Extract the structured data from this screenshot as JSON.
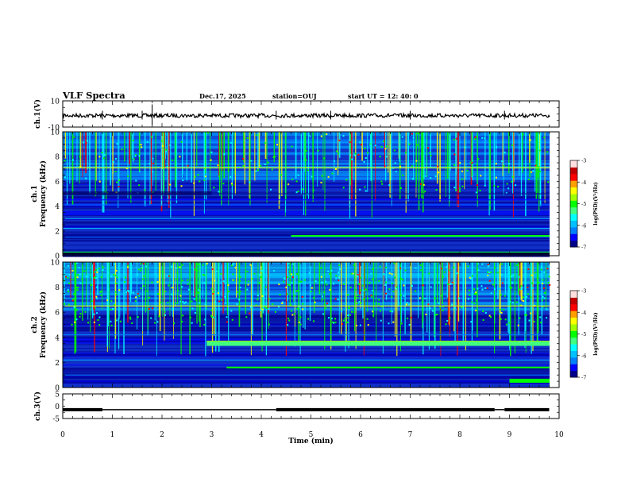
{
  "header": {
    "title": "VLF Spectra",
    "date": "Dec.17, 2025",
    "station": "station=OUJ",
    "start": "start  UT =   12: 40: 0"
  },
  "colors": {
    "colormap": [
      "#00008b",
      "#0000ff",
      "#0080ff",
      "#00c0ff",
      "#00ffff",
      "#40ff80",
      "#00ff00",
      "#a0ff00",
      "#ffff00",
      "#ffa000",
      "#ff0000",
      "#c00000",
      "#ffe0e0"
    ],
    "axis": "#000000"
  },
  "chart_data": [
    {
      "type": "line",
      "name": "ch1-waveform",
      "ylabel": "ch.1(V)",
      "ylim": [
        -10,
        10
      ],
      "yticks": [
        "10",
        "-10"
      ],
      "xlim": [
        0,
        10
      ],
      "description_values": {
        "baseline_v": 0,
        "spikes_min": [
          0.8,
          1.6,
          1.8,
          4.3,
          5.4,
          7.0,
          8.9
        ]
      }
    },
    {
      "type": "heatmap",
      "name": "ch1-spectrogram",
      "ylabel": "ch.1\nFrequency (kHz)",
      "ylim": [
        0,
        10
      ],
      "yticks": [
        "0",
        "2",
        "4",
        "6",
        "8",
        "10"
      ],
      "xlim": [
        0,
        10
      ],
      "colorbar": {
        "label": "log(PSD)(V²/Hz)",
        "ticks": [
          "-3",
          "-4",
          "-5",
          "-6",
          "-7"
        ],
        "range": [
          -7,
          -3
        ]
      },
      "features": {
        "tones_khz": [
          0.3,
          1.5,
          2.2,
          3.0,
          4.1,
          4.5,
          5.0,
          6.2,
          7.1
        ],
        "band_1_6khz_start_min": 4.6
      }
    },
    {
      "type": "heatmap",
      "name": "ch2-spectrogram",
      "ylabel": "ch.2\nFrequency (kHz)",
      "ylim": [
        0,
        10
      ],
      "yticks": [
        "0",
        "2",
        "4",
        "6",
        "8",
        "10"
      ],
      "xlim": [
        0,
        10
      ],
      "colorbar": {
        "label": "log(PSD)(V²/Hz)",
        "ticks": [
          "-3",
          "-4",
          "-5",
          "-6",
          "-7"
        ],
        "range": [
          -7,
          -3
        ]
      },
      "features": {
        "band_3_5khz_start_min": 2.9,
        "band_0_5khz_start_min": 9.0
      }
    },
    {
      "type": "line",
      "name": "ch3-signal",
      "ylabel": "ch.3(V)",
      "ylim": [
        -5,
        5
      ],
      "yticks": [
        "5",
        "0",
        "-5"
      ],
      "xlim": [
        0,
        10
      ],
      "segments": [
        {
          "x0": 0,
          "x1": 0.8,
          "y": -1.2
        },
        {
          "x0": 0.8,
          "x1": 4.3,
          "y": -1.8
        },
        {
          "x0": 4.3,
          "x1": 8.7,
          "y": -1.2
        },
        {
          "x0": 8.7,
          "x1": 8.9,
          "y": -1.8
        },
        {
          "x0": 8.9,
          "x1": 9.8,
          "y": -1.2
        }
      ],
      "xlabel": "Time (min)",
      "xticks": [
        "0",
        "1",
        "2",
        "3",
        "4",
        "5",
        "6",
        "7",
        "8",
        "9",
        "10"
      ]
    }
  ]
}
